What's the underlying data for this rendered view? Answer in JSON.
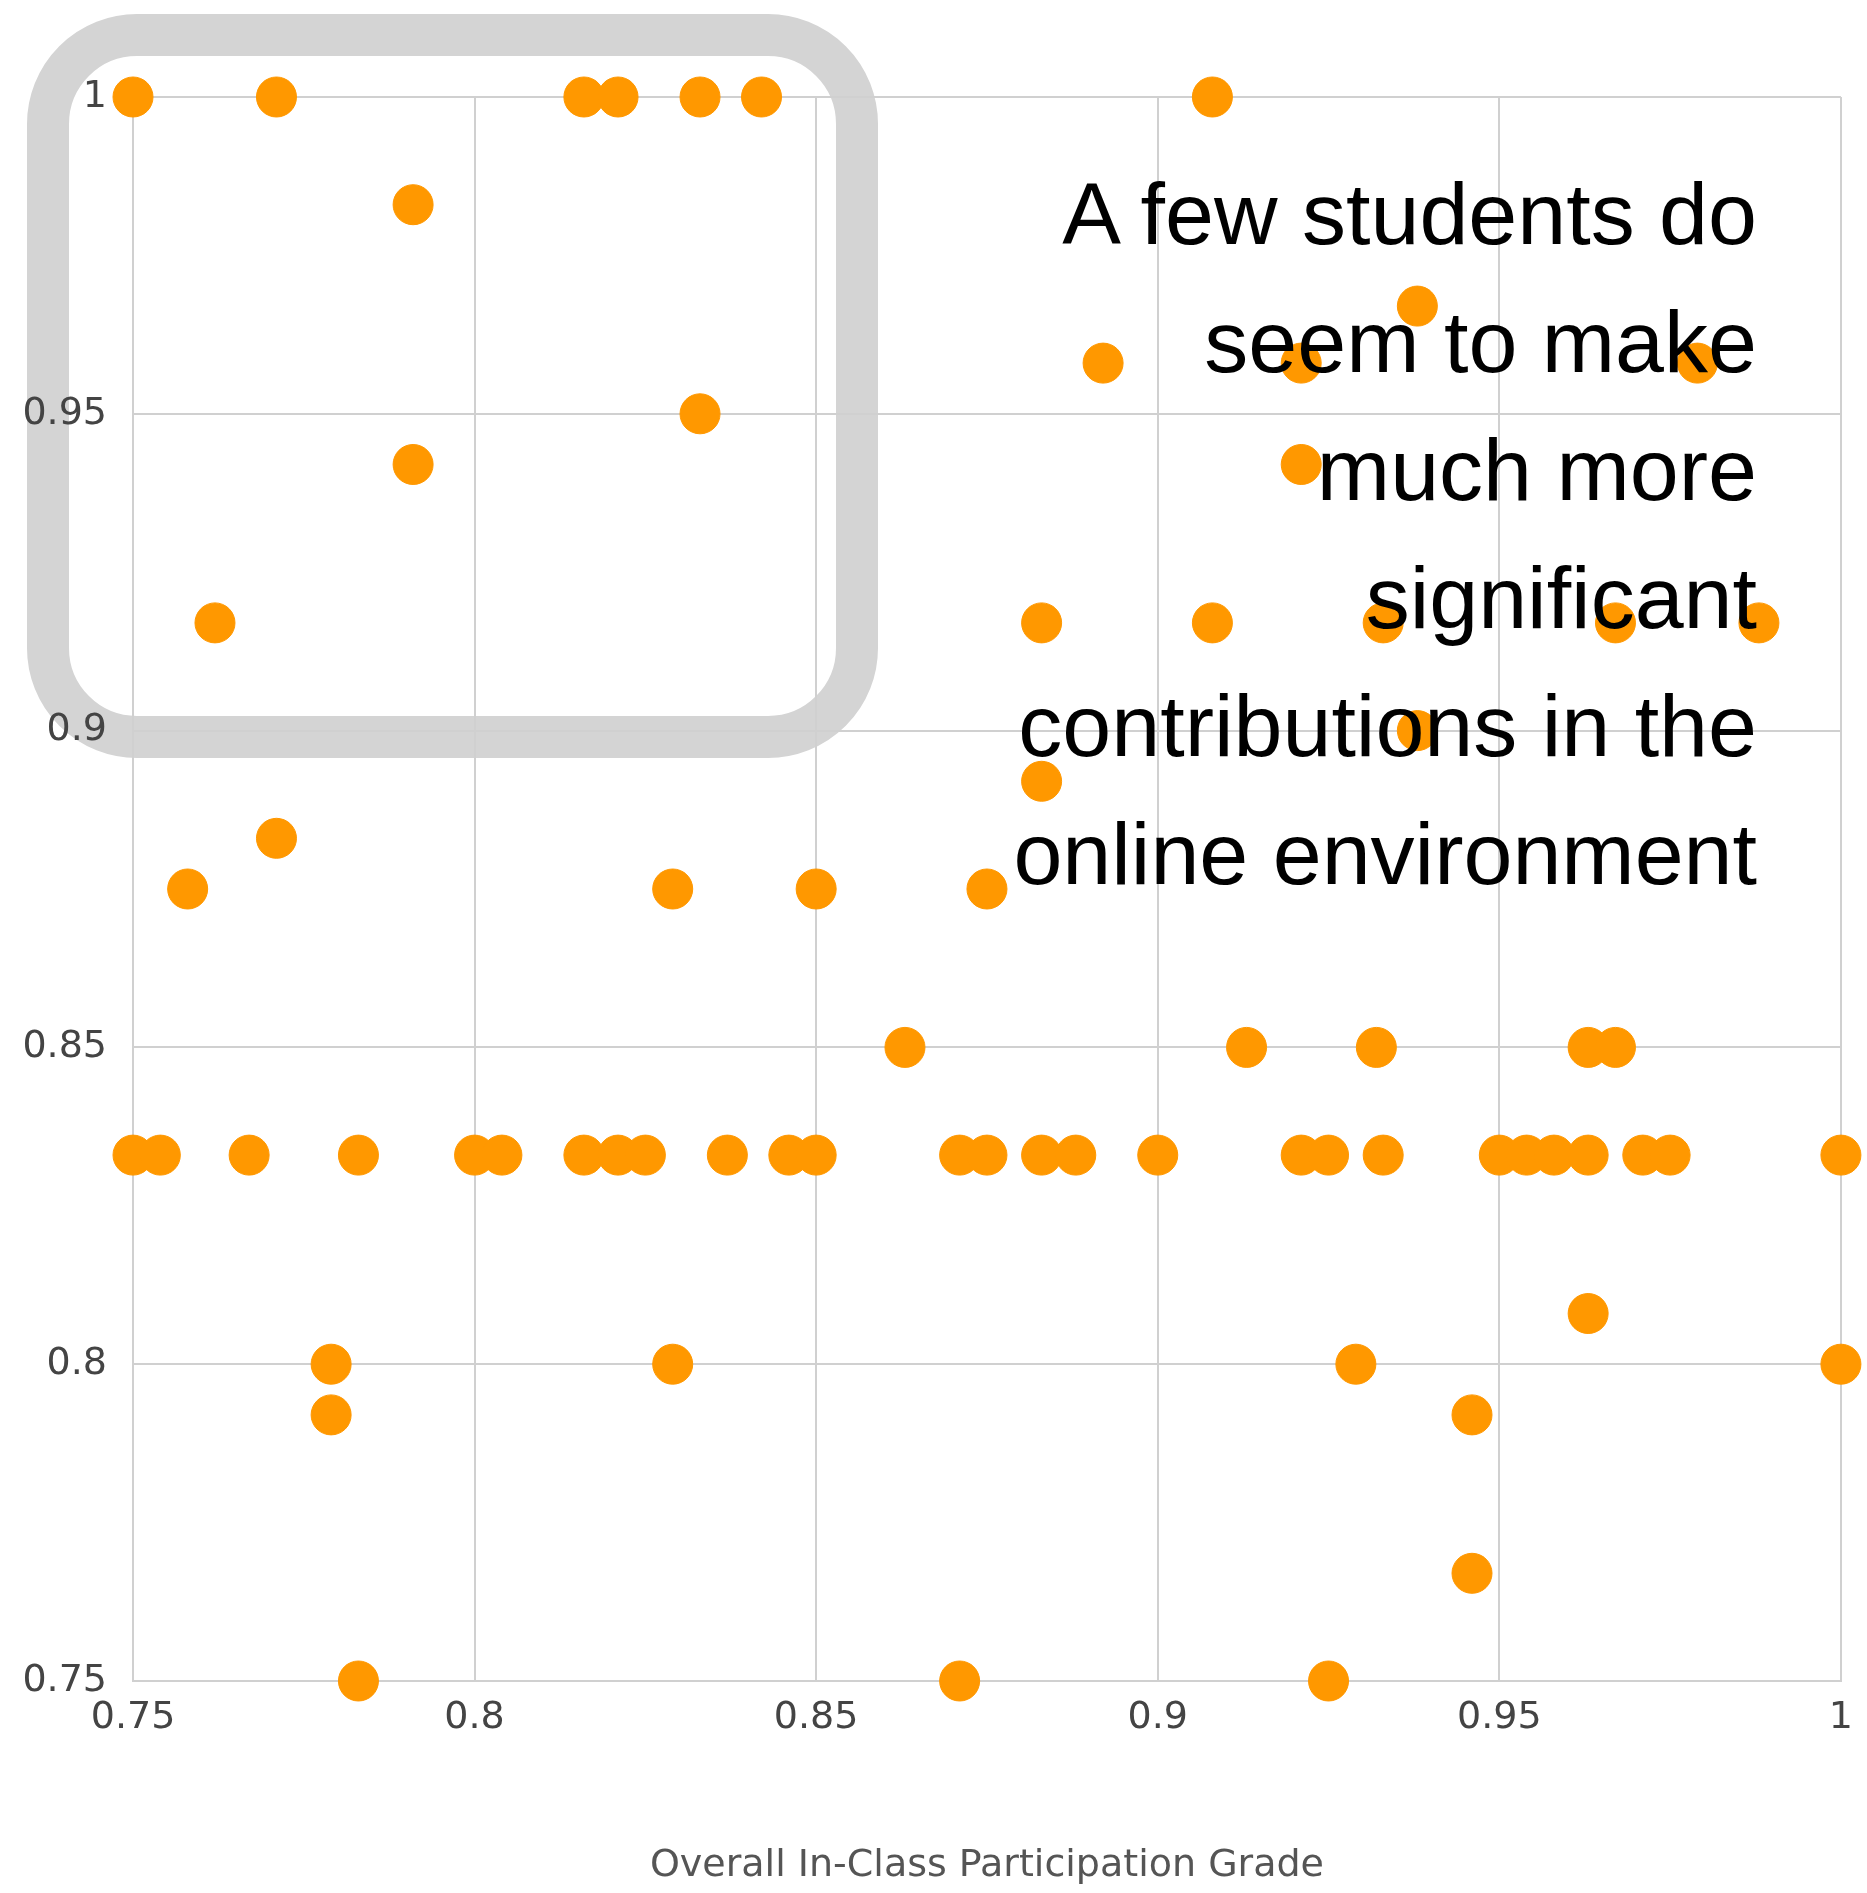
{
  "chart_data": {
    "type": "scatter",
    "xlabel": "Overall In-Class Participation Grade",
    "x": [
      0.75,
      0.771,
      0.816,
      0.821,
      0.833,
      0.842,
      0.908,
      0.791,
      0.791,
      0.833,
      0.762,
      0.892,
      0.938,
      0.921,
      0.979,
      0.921,
      0.883,
      0.908,
      0.933,
      0.967,
      0.988,
      0.938,
      0.883,
      0.771,
      0.758,
      0.829,
      0.85,
      0.875,
      0.863,
      0.913,
      0.932,
      0.963,
      0.967,
      0.75,
      0.754,
      0.767,
      0.783,
      0.8,
      0.804,
      0.816,
      0.821,
      0.825,
      0.837,
      0.846,
      0.85,
      0.871,
      0.875,
      0.883,
      0.888,
      0.9,
      0.921,
      0.925,
      0.933,
      0.95,
      0.954,
      0.958,
      0.963,
      0.971,
      0.975,
      1,
      0.963,
      0.779,
      0.779,
      0.829,
      0.929,
      1,
      0.946,
      0.946,
      0.783,
      0.871,
      0.925
    ],
    "values": [
      1,
      1,
      1,
      1,
      1,
      1,
      1,
      0.983,
      0.942,
      0.95,
      0.917,
      0.958,
      0.967,
      0.958,
      0.958,
      0.942,
      0.917,
      0.917,
      0.917,
      0.917,
      0.917,
      0.9,
      0.892,
      0.883,
      0.875,
      0.875,
      0.875,
      0.875,
      0.85,
      0.85,
      0.85,
      0.85,
      0.85,
      0.833,
      0.833,
      0.833,
      0.833,
      0.833,
      0.833,
      0.833,
      0.833,
      0.833,
      0.833,
      0.833,
      0.833,
      0.833,
      0.833,
      0.833,
      0.833,
      0.833,
      0.833,
      0.833,
      0.833,
      0.833,
      0.833,
      0.833,
      0.833,
      0.833,
      0.833,
      0.833,
      0.808,
      0.8,
      0.792,
      0.8,
      0.8,
      0.8,
      0.792,
      0.767,
      0.75,
      0.75,
      0.75
    ],
    "color": "#ff9800",
    "marker": "circle",
    "xlim": [
      0.75,
      1
    ],
    "xticks": [
      0.75,
      0.8,
      0.85,
      0.9,
      0.95,
      1
    ],
    "ylim": [
      0.75,
      1
    ],
    "yticks": [
      0.75,
      0.8,
      0.85,
      0.9,
      0.95,
      1
    ],
    "grid": true,
    "legend": false,
    "annotations": [
      "A few students do seem to make much more significant contributions in the online environment"
    ]
  }
}
